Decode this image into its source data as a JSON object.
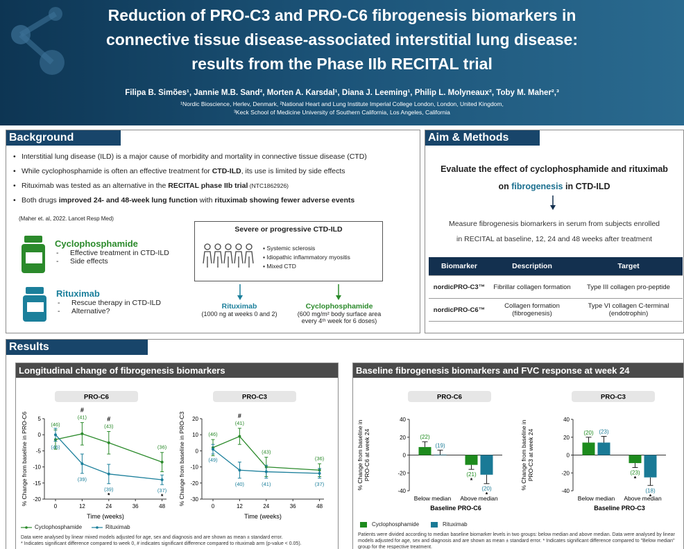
{
  "header": {
    "title_lines": [
      "Reduction of PRO-C3 and PRO-C6 fibrogenesis biomarkers in",
      "connective tissue disease-associated interstitial lung disease:",
      "results from the Phase IIb RECITAL trial"
    ],
    "authors": "Filipa B. Simões¹, Jannie M.B. Sand², Morten A. Karsdal¹,  Diana J. Leeming¹, Philip L. Molyneaux², Toby M. Maher²,³",
    "affiliations": [
      "¹Nordic Bioscience, Herlev, Denmark, ²National Heart and Lung Institute Imperial College London, London, United Kingdom,",
      "³Keck School of Medicine University of Southern California, Los Angeles, California"
    ]
  },
  "background": {
    "heading": "Background",
    "bullets": [
      [
        {
          "t": "Interstitial lung disease (ILD) is a major cause of morbidity and mortality in connective tissue disease (CTD)"
        }
      ],
      [
        {
          "t": "While cyclophosphamide is often an effective treatment for "
        },
        {
          "t": "CTD-ILD",
          "b": true
        },
        {
          "t": ", its use is limited by side effects"
        }
      ],
      [
        {
          "t": "Rituximab was tested as an alternative in the "
        },
        {
          "t": "RECITAL phase IIb trial",
          "b": true
        },
        {
          "t": " (NTC1862926)",
          "small": true
        }
      ],
      [
        {
          "t": "Both drugs "
        },
        {
          "t": "improved 24- and 48-week lung function",
          "b": true
        },
        {
          "t": " with "
        },
        {
          "t": "rituximab showing fewer adverse events",
          "b": true
        }
      ]
    ],
    "citation": "(Maher et. al, 2022. Lancet Resp Med)",
    "drugs": [
      {
        "name": "Cyclophosphamide",
        "items": [
          "Effective treatment in CTD-ILD",
          "Side effects"
        ]
      },
      {
        "name": "Rituximab",
        "items": [
          "Rescue therapy in CTD-ILD",
          "Alternative?"
        ]
      }
    ],
    "population": {
      "title": "Severe or progressive CTD-ILD",
      "items": [
        "Systemic sclerosis",
        "Idiopathic inflammatory myositis",
        "Mixed CTD"
      ]
    },
    "arms": [
      {
        "name": "Rituximab",
        "lines": [
          "(1000 ng at weeks 0 and 2)"
        ]
      },
      {
        "name": "Cyclophosphamide",
        "lines": [
          "(600 mg/m² body surface area",
          "every 4ᵗʰ week for 6 doses)"
        ]
      }
    ]
  },
  "aim": {
    "heading": "Aim & Methods",
    "aim_lines": [
      [
        {
          "t": "Evaluate the effect of cyclophosphamide and rituximab"
        }
      ],
      [
        {
          "t": "on "
        },
        {
          "t": "fibrogenesis",
          "highlight": true
        },
        {
          "t": " in CTD-ILD"
        }
      ]
    ],
    "methods_lines": [
      "Measure fibrogenesis biomarkers in serum from subjects enrolled",
      "in RECITAL at baseline, 12, 24 and 48 weeks after treatment"
    ],
    "table": {
      "columns": [
        "Biomarker",
        "Description",
        "Target"
      ],
      "rows": [
        [
          "nordicPRO-C3™",
          "Fibrillar collagen formation",
          "Type III collagen pro-peptide"
        ],
        [
          "nordicPRO-C6™",
          "Collagen formation (fibrogenesis)",
          "Type VI collagen C-terminal (endotrophin)"
        ]
      ]
    }
  },
  "results": {
    "heading": "Results",
    "panels": [
      {
        "title": "Longitudinal change of fibrogenesis biomarkers",
        "footnote": [
          "Data were analysed by linear mixed models adjusted for age, sex and diagnosis and are shown as mean ± standard error.",
          "* Indicates significant difference compared to week 0, # indicates significant difference compared to rituximab arm (p-value < 0.05)."
        ]
      },
      {
        "title": "Baseline fibrogenesis biomarkers and FVC response at week 24",
        "footnote": [
          "Patients were divided according to median baseline biomarker levels in two groups: below median and above median. Data were analysed by linear models adjusted for age, sex and diagnosis and are shown as mean ± standard error. * Indicates significant difference compared to \"Below median\" group for the respective treatment."
        ]
      }
    ]
  },
  "chart_data": [
    {
      "type": "line",
      "title": "PRO-C6",
      "x_label": "Time (weeks)",
      "y_label": [
        "% Change from baseline in PRO-C6"
      ],
      "x": [
        0,
        12,
        24,
        48
      ],
      "xlim": [
        -5,
        50
      ],
      "xticks": [
        0,
        12,
        24,
        36,
        48
      ],
      "ylim": [
        -20,
        5
      ],
      "yticks": [
        -20,
        -15,
        -10,
        -5,
        0,
        5
      ],
      "series": [
        {
          "name": "Cyclophosphamide",
          "color": "#2b8a2b",
          "values": [
            -1.5,
            0.3,
            -2.5,
            -8.5
          ],
          "errors": [
            3,
            3.5,
            3.5,
            3
          ],
          "n_labels": [
            "(46)",
            "(41)",
            "(43)",
            "(36)"
          ]
        },
        {
          "name": "Rituximab",
          "color": "#1b7f9b",
          "values": [
            0,
            -9,
            -12.2,
            -14
          ],
          "errors": [
            2,
            3,
            3,
            1.5
          ],
          "n_labels": [
            "(46)",
            "(39)",
            "(39)",
            "(37)"
          ]
        }
      ],
      "annotations": [
        {
          "text": "#",
          "x": 12
        },
        {
          "text": "#",
          "x": 24
        },
        {
          "text": "*",
          "x": 24,
          "series": 1
        },
        {
          "text": "*",
          "x": 48,
          "series": 1
        }
      ]
    },
    {
      "type": "line",
      "title": "PRO-C3",
      "x_label": "Time (weeks)",
      "y_label": [
        "% Change from baseline in PRO-C3"
      ],
      "x": [
        0,
        12,
        24,
        48
      ],
      "xlim": [
        -5,
        50
      ],
      "xticks": [
        0,
        12,
        24,
        36,
        48
      ],
      "ylim": [
        -30,
        20
      ],
      "yticks": [
        -30,
        -20,
        -10,
        0,
        10,
        20
      ],
      "series": [
        {
          "color": "#2b8a2b",
          "values": [
            2,
            9,
            -10,
            -12
          ],
          "errors": [
            5,
            5,
            6,
            4
          ],
          "n_labels": [
            "(46)",
            "(41)",
            "(43)",
            "(36)"
          ]
        },
        {
          "color": "#1b7f9b",
          "values": [
            1,
            -12,
            -13,
            -14
          ],
          "errors": [
            3,
            5,
            4,
            3
          ],
          "n_labels": [
            "(49)",
            "(40)",
            "(41)",
            "(37)"
          ]
        }
      ],
      "annotations": [
        {
          "text": "#",
          "x": 12
        }
      ]
    },
    {
      "type": "bar",
      "title": "PRO-C6",
      "x_label": "Baseline PRO-C6",
      "y_label": [
        "% Change from baseline in",
        "PRO-C6 at week 24"
      ],
      "categories": [
        "Below median",
        "Above median"
      ],
      "ylim": [
        -40,
        40
      ],
      "yticks": [
        -40,
        -20,
        0,
        20,
        40
      ],
      "series": [
        {
          "name": "Cyclophosphamide",
          "color": "#1d8b1d",
          "values": [
            9,
            -11
          ],
          "errors": [
            6,
            5
          ],
          "n_labels": [
            "(22)",
            "(21)"
          ]
        },
        {
          "name": "Rituximab",
          "color": "#1a7a96",
          "values": [
            0.5,
            -22
          ],
          "errors": [
            5,
            10
          ],
          "n_labels": [
            "(19)",
            "(20)"
          ]
        }
      ],
      "annotations": [
        {
          "text": "*",
          "category": 1,
          "series": 0
        },
        {
          "text": "*",
          "category": 1,
          "series": 1
        }
      ]
    },
    {
      "type": "bar",
      "title": "PRO-C3",
      "x_label": "Baseline PRO-C3",
      "y_label": [
        "% Change from baseline in",
        "PRO-C3 at week 24"
      ],
      "categories": [
        "Below median",
        "Above median"
      ],
      "ylim": [
        -40,
        40
      ],
      "yticks": [
        -40,
        -20,
        0,
        20,
        40
      ],
      "series": [
        {
          "color": "#1d8b1d",
          "values": [
            14,
            -9
          ],
          "errors": [
            6,
            5
          ],
          "n_labels": [
            "(20)",
            "(23)"
          ]
        },
        {
          "color": "#1a7a96",
          "values": [
            14,
            -25
          ],
          "errors": [
            7,
            9
          ],
          "n_labels": [
            "(23)",
            "(18)"
          ]
        }
      ],
      "annotations": [
        {
          "text": "*",
          "category": 1,
          "series": 0
        },
        {
          "text": "*",
          "category": 1,
          "series": 1
        }
      ]
    }
  ]
}
